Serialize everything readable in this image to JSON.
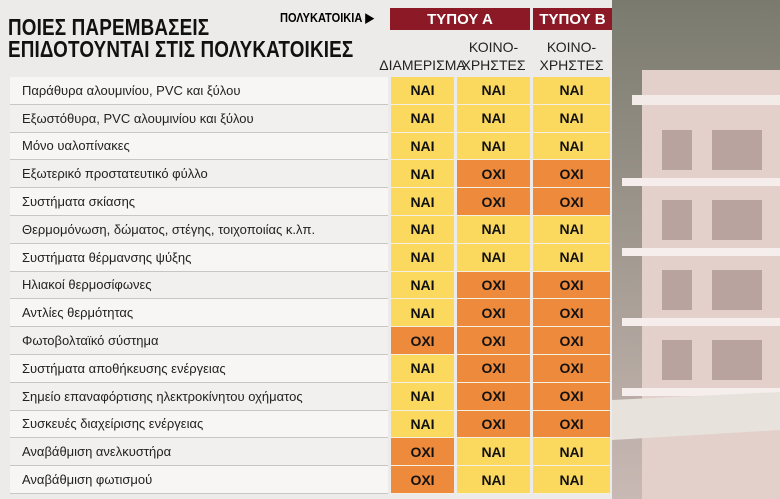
{
  "header": {
    "title": [
      "ΠΟΙΕΣ ΠΑΡΕΜΒΑΣΕΙΣ",
      "ΕΠΙΔΟΤΟΥΝΤΑΙ ΣΤΙΣ ΠΟΛΥΚΑΤΟΙΚΙΕΣ"
    ],
    "group_label": "ΠΟΛΥΚΑΤΟΙΚΙΑ ▶",
    "groups": [
      "ΤΥΠΟΥ Α",
      "ΤΥΠΟΥ Β"
    ]
  },
  "table": {
    "columns": [
      [
        "ΔΙΑΜΕΡΙΣΜΑ"
      ],
      [
        "ΚΟΙΝΟ-",
        "ΧΡΗΣΤΕΣ"
      ],
      [
        "ΚΟΙΝΟ-",
        "ΧΡΗΣΤΕΣ"
      ]
    ],
    "cell_fill": {
      "ΝΑΙ": "#fbd95e",
      "ΟΧΙ": "#ee8a3c"
    },
    "rows": [
      {
        "label": "Παράθυρα αλουμινίου, PVC και ξύλου",
        "cells": [
          "ΝΑΙ",
          "ΝΑΙ",
          "ΝΑΙ"
        ]
      },
      {
        "label": "Εξωστόθυρα, PVC αλουμινίου και ξύλου",
        "cells": [
          "ΝΑΙ",
          "ΝΑΙ",
          "ΝΑΙ"
        ]
      },
      {
        "label": "Μόνο υαλοπίνακες",
        "cells": [
          "ΝΑΙ",
          "ΝΑΙ",
          "ΝΑΙ"
        ]
      },
      {
        "label": "Εξωτερικό προστατευτικό φύλλο",
        "cells": [
          "ΝΑΙ",
          "ΟΧΙ",
          "ΟΧΙ"
        ]
      },
      {
        "label": "Συστήματα σκίασης",
        "cells": [
          "ΝΑΙ",
          "ΟΧΙ",
          "ΟΧΙ"
        ]
      },
      {
        "label": "Θερμομόνωση, δώματος, στέγης, τοιχοποιίας κ.λπ.",
        "cells": [
          "ΝΑΙ",
          "ΝΑΙ",
          "ΝΑΙ"
        ]
      },
      {
        "label": "Συστήματα θέρμανσης ψύξης",
        "cells": [
          "ΝΑΙ",
          "ΝΑΙ",
          "ΝΑΙ"
        ]
      },
      {
        "label": "Ηλιακοί θερμοσίφωνες",
        "cells": [
          "ΝΑΙ",
          "ΟΧΙ",
          "ΟΧΙ"
        ]
      },
      {
        "label": "Αντλίες θερμότητας",
        "cells": [
          "ΝΑΙ",
          "ΟΧΙ",
          "ΟΧΙ"
        ]
      },
      {
        "label": "Φωτοβολταϊκό σύστημα",
        "cells": [
          "ΟΧΙ",
          "ΟΧΙ",
          "ΟΧΙ"
        ]
      },
      {
        "label": "Συστήματα αποθήκευσης ενέργειας",
        "cells": [
          "ΝΑΙ",
          "ΟΧΙ",
          "ΟΧΙ"
        ]
      },
      {
        "label": "Σημείο επαναφόρτισης ηλεκτροκίνητου οχήματος",
        "cells": [
          "ΝΑΙ",
          "ΟΧΙ",
          "ΟΧΙ"
        ]
      },
      {
        "label": "Συσκευές διαχείρισης ενέργειας",
        "cells": [
          "ΝΑΙ",
          "ΟΧΙ",
          "ΟΧΙ"
        ]
      },
      {
        "label": "Αναβάθμιση ανελκυστήρα",
        "cells": [
          "ΟΧΙ",
          "ΝΑΙ",
          "ΝΑΙ"
        ]
      },
      {
        "label": "Αναβάθμιση φωτισμού",
        "cells": [
          "ΟΧΙ",
          "ΝΑΙ",
          "ΝΑΙ"
        ]
      }
    ]
  }
}
